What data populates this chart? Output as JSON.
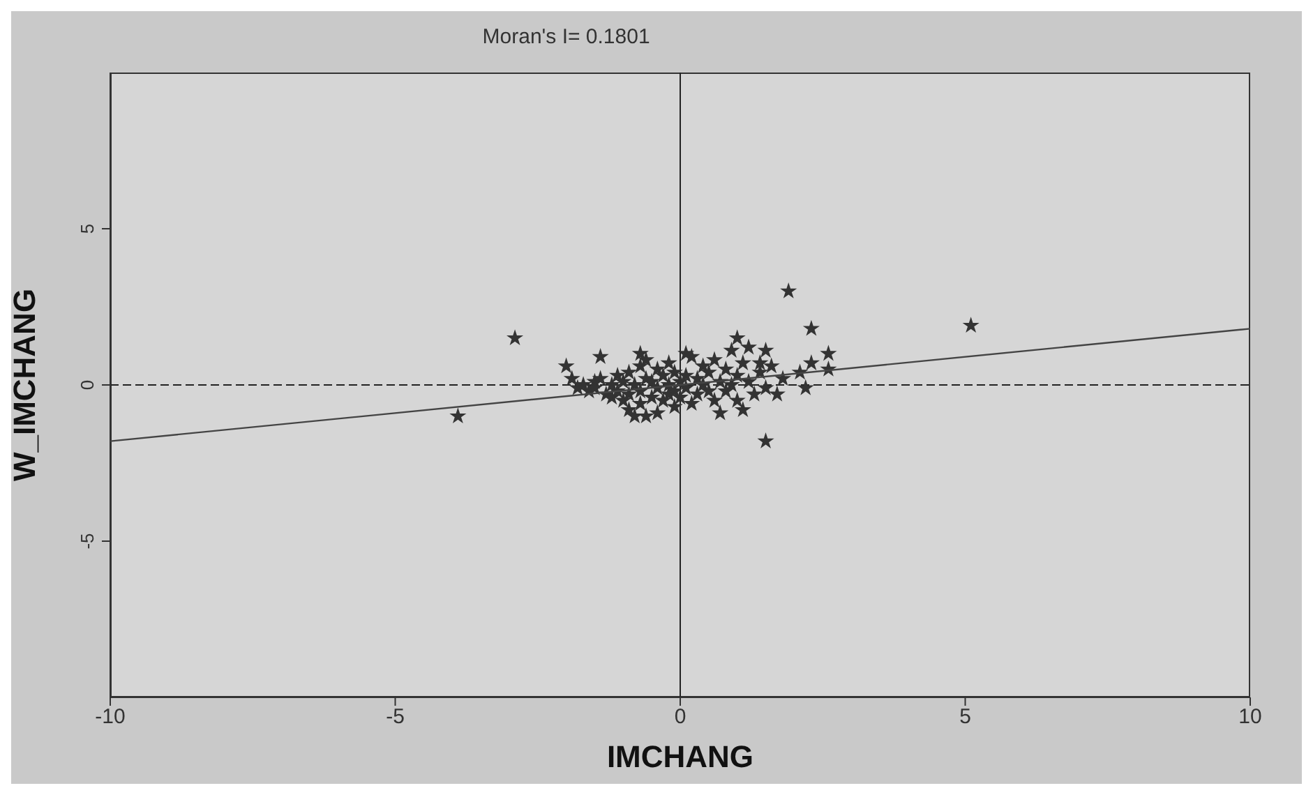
{
  "chart_data": {
    "type": "scatter",
    "title": "Moran's I= 0.1801",
    "xlabel": "IMCHANG",
    "ylabel": "W_IMCHANG",
    "xlim": [
      -10,
      10
    ],
    "ylim": [
      -10,
      10
    ],
    "xticks": [
      -10,
      -5,
      0,
      5,
      10
    ],
    "yticks": [
      -5,
      0,
      5
    ],
    "grid": false,
    "marker": "star",
    "series": [
      {
        "color": "#333333",
        "x": [
          -1.9,
          -1.8,
          -1.7,
          -1.6,
          -1.5,
          -1.5,
          -1.4,
          -1.3,
          -1.2,
          -1.2,
          -1.1,
          -1.1,
          -1.0,
          -1.0,
          -0.9,
          -0.9,
          -0.9,
          -0.8,
          -0.8,
          -0.7,
          -0.7,
          -0.7,
          -0.6,
          -0.6,
          -0.6,
          -0.5,
          -0.5,
          -0.4,
          -0.4,
          -0.4,
          -0.3,
          -0.3,
          -0.2,
          -0.2,
          -0.2,
          -0.1,
          -0.1,
          -0.1,
          0.0,
          0.0,
          0.1,
          0.1,
          0.2,
          0.2,
          0.3,
          0.3,
          0.4,
          0.4,
          0.5,
          0.5,
          0.6,
          0.6,
          0.7,
          0.7,
          0.8,
          0.8,
          0.9,
          0.9,
          1.0,
          1.0,
          1.1,
          1.1,
          1.2,
          1.2,
          1.3,
          1.4,
          1.5,
          1.6,
          1.7,
          1.8,
          2.1,
          2.2,
          -3.9,
          -2.9,
          -2.0,
          -1.4,
          -0.7,
          0.1,
          1.0,
          1.4,
          1.5,
          1.9,
          2.3,
          2.6,
          2.3,
          2.6,
          1.5,
          5.1
        ],
        "values": [
          0.2,
          -0.1,
          0.0,
          -0.2,
          0.1,
          -0.1,
          0.2,
          -0.3,
          0.0,
          -0.4,
          0.3,
          -0.2,
          0.1,
          -0.5,
          0.4,
          -0.3,
          -0.8,
          0.0,
          -1.0,
          0.6,
          -0.2,
          -0.6,
          0.2,
          -1.0,
          0.8,
          -0.4,
          0.1,
          -0.1,
          0.5,
          -0.9,
          0.3,
          -0.5,
          0.0,
          -0.3,
          0.7,
          -0.2,
          0.4,
          -0.7,
          0.1,
          -0.4,
          0.3,
          -0.1,
          0.9,
          -0.6,
          0.2,
          -0.3,
          0.6,
          0.0,
          -0.2,
          0.4,
          0.8,
          -0.5,
          0.1,
          -0.9,
          0.5,
          -0.2,
          1.1,
          0.0,
          -0.5,
          0.3,
          0.7,
          -0.8,
          0.1,
          1.2,
          -0.3,
          0.4,
          -0.1,
          0.6,
          -0.3,
          0.2,
          0.4,
          -0.1,
          -1.0,
          1.5,
          0.6,
          0.9,
          1.0,
          1.0,
          1.5,
          0.7,
          1.1,
          3.0,
          1.8,
          1.0,
          0.7,
          0.5,
          -1.8,
          1.9
        ]
      },
      {
        "type": "line",
        "color": "#444444",
        "marker": "none",
        "x": [
          -10,
          10
        ],
        "values": [
          -1.8,
          1.8
        ]
      }
    ],
    "ref_lines": [
      {
        "axis": "y",
        "value": 0,
        "color": "#222222",
        "line_style": "dashed"
      },
      {
        "axis": "x",
        "value": 0,
        "color": "#222222",
        "line_style": "solid"
      }
    ]
  }
}
